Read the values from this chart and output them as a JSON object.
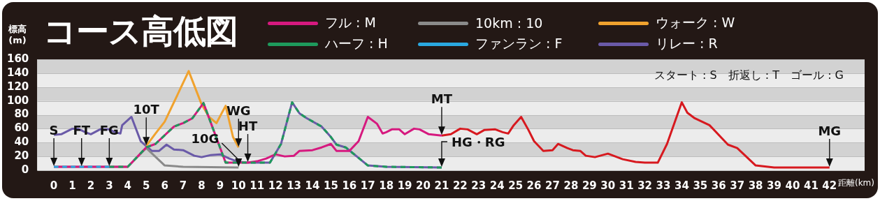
{
  "chart_data": {
    "type": "line",
    "title": "コース高低図",
    "ylabel": "標高(m)",
    "xlabel": "距離(km)",
    "xlim": [
      -0.9,
      43.9
    ],
    "xticks": [
      0,
      1,
      2,
      3,
      4,
      5,
      6,
      7,
      8,
      9,
      10,
      11,
      12,
      13,
      14,
      15,
      16,
      17,
      18,
      19,
      20,
      21,
      22,
      23,
      24,
      25,
      26,
      27,
      28,
      29,
      30,
      31,
      32,
      33,
      34,
      35,
      36,
      37,
      38,
      39,
      40,
      41,
      42
    ],
    "ylim": [
      0,
      160
    ],
    "yticks": [
      0,
      20,
      40,
      60,
      80,
      100,
      120,
      140,
      160
    ],
    "grid": "y",
    "legend": "top",
    "marker": "none",
    "line_style": "solid",
    "series": [
      {
        "name": "フル : M",
        "color": "#d6197f",
        "x": [
          0,
          4,
          5,
          5.5,
          6.5,
          7,
          7.5,
          8.1,
          9.3,
          10,
          10.5,
          11,
          11.5,
          12,
          12.5,
          13,
          13.3,
          14,
          14.5,
          15,
          15.3,
          16,
          16.5,
          17,
          17.5,
          17.8,
          18,
          18.3,
          18.7,
          19,
          19.5,
          19.8,
          20.3,
          21
        ],
        "values": [
          5,
          5,
          33,
          38,
          63,
          68,
          75,
          97,
          11,
          11,
          11,
          13,
          17,
          23,
          20,
          21,
          28,
          29,
          33,
          38,
          28,
          28,
          42,
          77,
          67,
          53,
          55,
          59,
          59,
          52,
          60,
          59,
          52,
          50
        ]
      },
      {
        "name": "10km : 10",
        "color": "#8a8a8a",
        "x": [
          0,
          4,
          5,
          6,
          7,
          10
        ],
        "values": [
          5,
          5,
          32,
          7,
          5,
          4
        ]
      },
      {
        "name": "ウォーク : W",
        "color": "#f0a22e",
        "x": [
          5,
          5.5,
          6,
          7.3,
          8,
          8.4,
          8.8,
          9.3,
          9.7,
          10
        ],
        "values": [
          35,
          53,
          70,
          143,
          95,
          77,
          68,
          93,
          48,
          33
        ]
      },
      {
        "name": "ハーフ : H",
        "color": "#1e9a5c",
        "line_style": "dashed",
        "x": [
          3,
          4,
          5,
          5.5,
          6.5,
          7,
          7.5,
          8.1,
          9.3,
          10,
          10.5,
          11,
          11.7,
          12.3,
          12.9,
          13.3,
          13.7,
          14.5,
          15,
          15.3,
          15.8,
          17,
          18,
          21
        ],
        "values": [
          5,
          5,
          33,
          38,
          63,
          68,
          75,
          97,
          11,
          11,
          11,
          11,
          11,
          38,
          98,
          82,
          75,
          63,
          48,
          37,
          33,
          7,
          5,
          4
        ]
      },
      {
        "name": "ファンラン : F",
        "color": "#2aa8e0",
        "line_style": "dashed",
        "x": [
          0,
          3
        ],
        "values": [
          5,
          5
        ]
      },
      {
        "name": "リレー : R",
        "color": "#6a5aa8",
        "x": [
          0,
          0.4,
          1,
          1.3,
          1.7,
          2,
          2.5,
          3,
          3.3,
          3.6,
          3.7,
          4.2,
          4.7,
          5.3,
          5.7,
          6.1,
          6.5,
          7,
          7.6,
          8,
          8.5,
          9,
          9.5,
          10,
          10.5,
          11,
          11.7,
          12.3,
          12.9,
          13.3,
          13.7,
          14.5,
          15,
          15.3,
          15.8,
          17,
          18,
          21
        ],
        "values": [
          51,
          52,
          60,
          60,
          55,
          52,
          59,
          59,
          55,
          53,
          65,
          77,
          42,
          28,
          28,
          37,
          30,
          29,
          21,
          19,
          22,
          23,
          17,
          12,
          11,
          11,
          11,
          38,
          98,
          82,
          75,
          63,
          48,
          37,
          33,
          7,
          5,
          4
        ]
      },
      {
        "color": "#d7191f",
        "x": [
          21,
          21.5,
          22,
          22.4,
          22.9,
          23.3,
          23.9,
          24.3,
          24.6,
          24.9,
          25.3,
          25.7,
          26,
          26.5,
          27,
          27.3,
          27.8,
          28.1,
          28.5,
          28.8,
          29.3,
          30,
          30.8,
          31.5,
          32,
          32.7,
          33.2,
          34,
          34.3,
          34.7,
          35.5,
          36.5,
          37,
          38,
          39,
          42
        ],
        "values": [
          50,
          52,
          60,
          59,
          52,
          58,
          59,
          55,
          53,
          65,
          77,
          58,
          42,
          28,
          29,
          38,
          32,
          29,
          28,
          21,
          19,
          24,
          16,
          12,
          11,
          11,
          38,
          98,
          83,
          75,
          65,
          37,
          32,
          7,
          4,
          4
        ]
      }
    ],
    "annotations": [
      {
        "text": "S",
        "x": 0,
        "y": 5
      },
      {
        "text": "FT",
        "x": 1.5,
        "y": 5
      },
      {
        "text": "FG",
        "x": 3,
        "y": 5
      },
      {
        "text": "10T",
        "x": 5,
        "y": 35
      },
      {
        "text": "WG",
        "x": 10,
        "y": 33
      },
      {
        "text": "10G",
        "x": 10,
        "y": 4
      },
      {
        "text": "HT",
        "x": 10.5,
        "y": 11
      },
      {
        "text": "MT",
        "x": 21,
        "y": 50
      },
      {
        "text": "HG・RG",
        "x": 21,
        "y": 4
      },
      {
        "text": "MG",
        "x": 42,
        "y": 4
      },
      "スタート : S　折返し : T　ゴール : G"
    ]
  }
}
